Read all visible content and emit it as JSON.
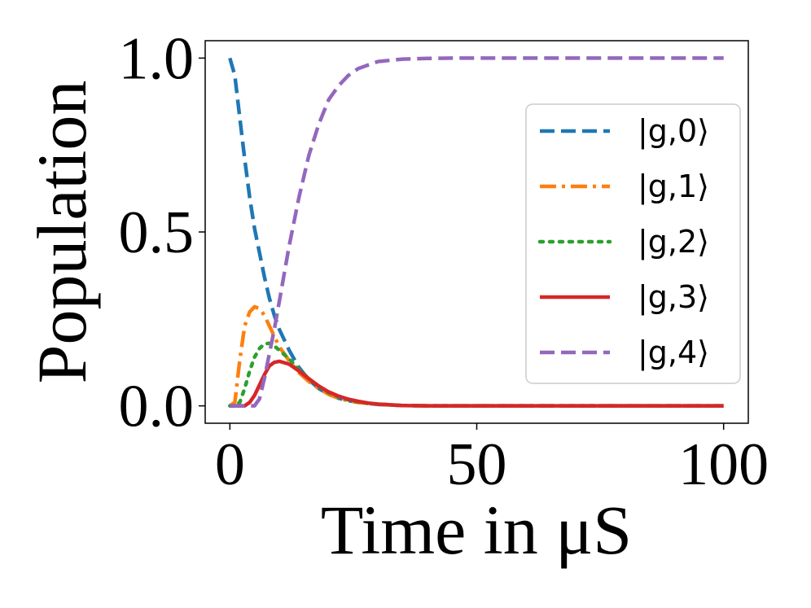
{
  "chart_data": {
    "type": "line",
    "title": "",
    "xlabel": "Time in μS",
    "ylabel": "Population",
    "xlim": [
      -5,
      105
    ],
    "ylim": [
      -0.05,
      1.05
    ],
    "xticks": [
      0,
      50,
      100
    ],
    "xtick_labels": [
      "0",
      "50",
      "100"
    ],
    "yticks": [
      0.0,
      0.5,
      1.0
    ],
    "ytick_labels": [
      "0.0",
      "0.5",
      "1.0"
    ],
    "grid": false,
    "legend_position": "right",
    "x": [
      0,
      1,
      2,
      3,
      4,
      5,
      6,
      7,
      8,
      9,
      10,
      12,
      14,
      16,
      18,
      20,
      22,
      24,
      26,
      28,
      30,
      35,
      40,
      45,
      50,
      60,
      70,
      80,
      90,
      100
    ],
    "series": [
      {
        "name": "|g,0⟩",
        "color": "#1f77b4",
        "style": "dashed",
        "values": [
          1.0,
          0.95,
          0.83,
          0.71,
          0.6,
          0.51,
          0.44,
          0.37,
          0.31,
          0.26,
          0.22,
          0.16,
          0.11,
          0.075,
          0.05,
          0.033,
          0.022,
          0.015,
          0.01,
          0.007,
          0.004,
          0.001,
          0.0,
          0.0,
          0.0,
          0.0,
          0.0,
          0.0,
          0.0,
          0.0
        ]
      },
      {
        "name": "|g,1⟩",
        "color": "#ff7f0e",
        "style": "dashdot",
        "values": [
          0.0,
          0.01,
          0.13,
          0.23,
          0.27,
          0.285,
          0.28,
          0.26,
          0.23,
          0.2,
          0.17,
          0.13,
          0.095,
          0.07,
          0.05,
          0.033,
          0.022,
          0.015,
          0.01,
          0.007,
          0.004,
          0.001,
          0.0,
          0.0,
          0.0,
          0.0,
          0.0,
          0.0,
          0.0,
          0.0
        ]
      },
      {
        "name": "|g,2⟩",
        "color": "#2ca02c",
        "style": "dotted",
        "values": [
          0.0,
          0.0,
          0.01,
          0.05,
          0.1,
          0.14,
          0.165,
          0.178,
          0.18,
          0.172,
          0.16,
          0.135,
          0.105,
          0.078,
          0.055,
          0.038,
          0.026,
          0.017,
          0.011,
          0.007,
          0.005,
          0.001,
          0.0,
          0.0,
          0.0,
          0.0,
          0.0,
          0.0,
          0.0,
          0.0
        ]
      },
      {
        "name": "|g,3⟩",
        "color": "#d62728",
        "style": "solid",
        "values": [
          0.0,
          0.0,
          0.0,
          0.0,
          0.01,
          0.03,
          0.06,
          0.09,
          0.115,
          0.125,
          0.128,
          0.12,
          0.1,
          0.078,
          0.057,
          0.04,
          0.028,
          0.019,
          0.013,
          0.008,
          0.005,
          0.001,
          0.0,
          0.0,
          0.0,
          0.0,
          0.0,
          0.0,
          0.0,
          0.0
        ]
      },
      {
        "name": "|g,4⟩",
        "color": "#9467bd",
        "style": "dashed",
        "values": [
          0.0,
          0.0,
          0.0,
          0.0,
          0.0,
          0.0,
          0.02,
          0.08,
          0.15,
          0.22,
          0.3,
          0.46,
          0.6,
          0.72,
          0.81,
          0.88,
          0.92,
          0.95,
          0.97,
          0.98,
          0.99,
          0.997,
          0.999,
          1.0,
          1.0,
          1.0,
          1.0,
          1.0,
          1.0,
          1.0
        ]
      }
    ]
  }
}
